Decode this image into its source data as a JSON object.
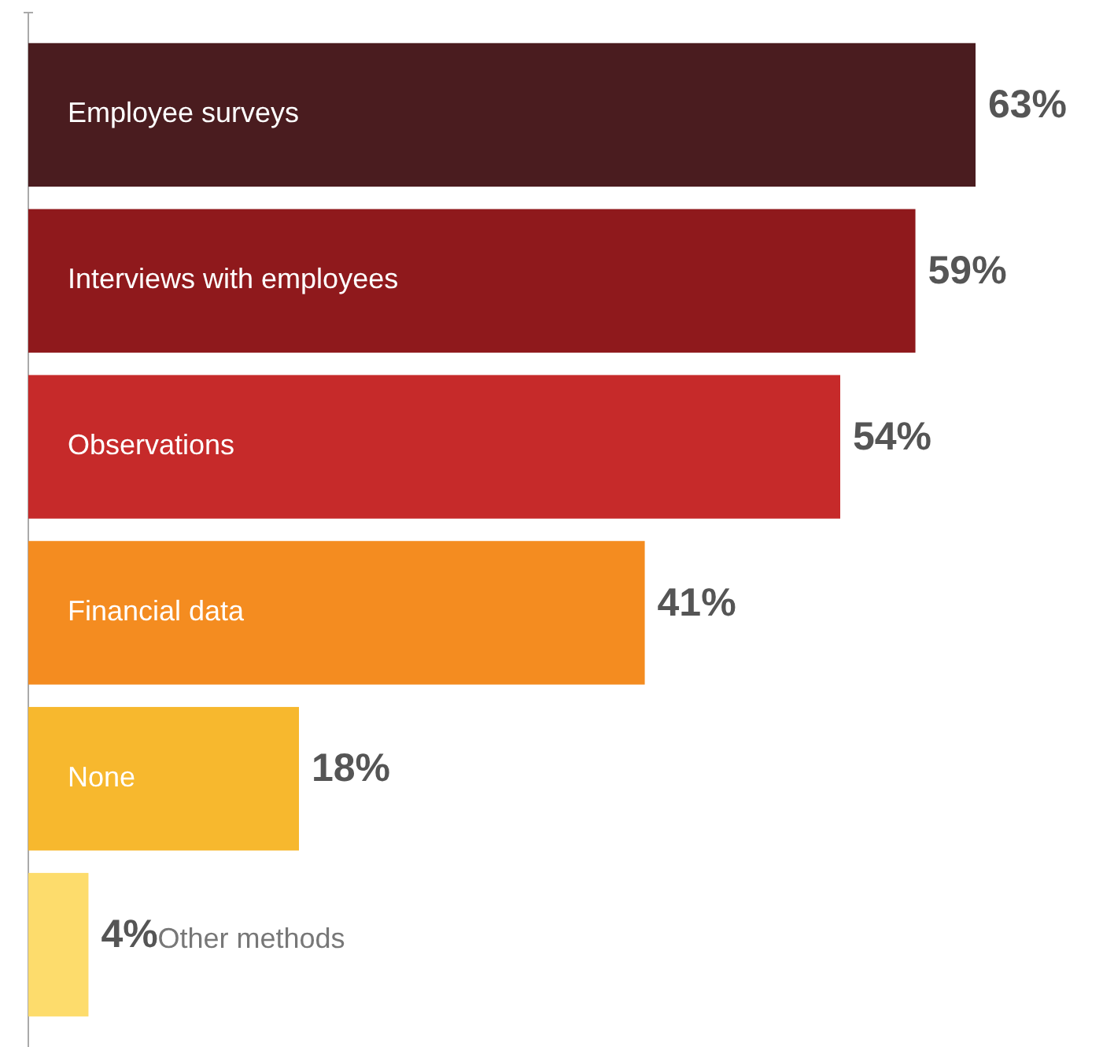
{
  "chart_data": {
    "type": "bar",
    "orientation": "horizontal",
    "categories": [
      "Employee surveys",
      "Interviews with employees",
      "Observations",
      "Financial data",
      "None",
      "Other methods"
    ],
    "values": [
      63,
      59,
      54,
      41,
      18,
      4
    ],
    "colors": [
      "#4a1c1f",
      "#8f191c",
      "#c62a2a",
      "#f48c20",
      "#f7b82e",
      "#fddc6c"
    ],
    "value_labels": [
      "63%",
      "59%",
      "54%",
      "41%",
      "18%",
      "4%"
    ]
  }
}
